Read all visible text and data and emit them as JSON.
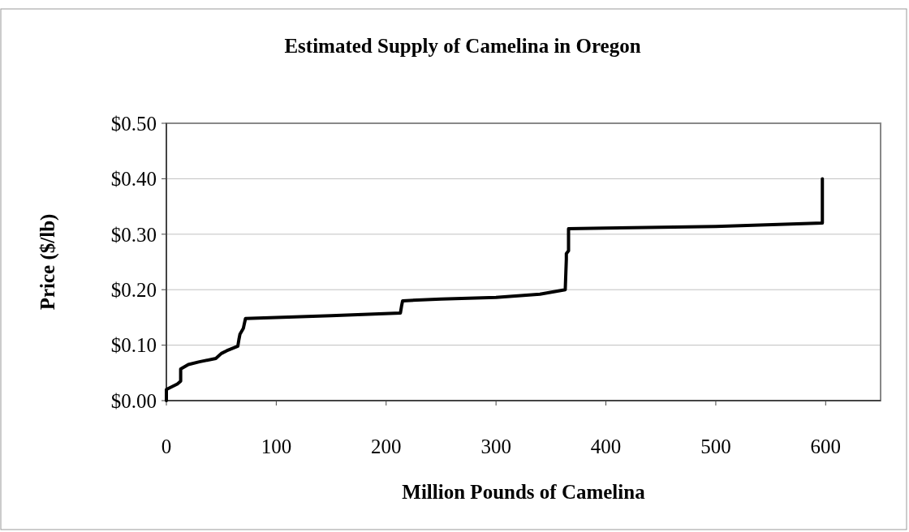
{
  "chart_data": {
    "type": "line",
    "title": "Estimated Supply of Camelina in Oregon",
    "xlabel": "Million Pounds of Camelina",
    "ylabel": "Price ($/lb)",
    "x": [
      0,
      0,
      10,
      13,
      13,
      20,
      30,
      45,
      50,
      55,
      65,
      66,
      67,
      70,
      72,
      100,
      150,
      213,
      214,
      215,
      250,
      300,
      340,
      363,
      364,
      364,
      366,
      366,
      400,
      500,
      597,
      597
    ],
    "series": [
      {
        "color": "#000000",
        "values": [
          0,
          0.02,
          0.03,
          0.035,
          0.057,
          0.065,
          0.07,
          0.076,
          0.085,
          0.09,
          0.098,
          0.11,
          0.12,
          0.13,
          0.148,
          0.15,
          0.153,
          0.158,
          0.17,
          0.18,
          0.183,
          0.186,
          0.192,
          0.2,
          0.255,
          0.265,
          0.27,
          0.31,
          0.311,
          0.314,
          0.32,
          0.4
        ]
      }
    ],
    "xlim": [
      0,
      650
    ],
    "xticks": [
      0,
      100,
      200,
      300,
      400,
      500,
      600
    ],
    "ylim": [
      0,
      0.5
    ],
    "yticks": [
      {
        "value": 0,
        "label": "$0.00"
      },
      {
        "value": 0.1,
        "label": "$0.10"
      },
      {
        "value": 0.2,
        "label": "$0.20"
      },
      {
        "value": 0.3,
        "label": "$0.30"
      },
      {
        "value": 0.4,
        "label": "$0.40"
      },
      {
        "value": 0.5,
        "label": "$0.50"
      }
    ],
    "grid": "y",
    "marker": "none",
    "line_style": "solid"
  }
}
